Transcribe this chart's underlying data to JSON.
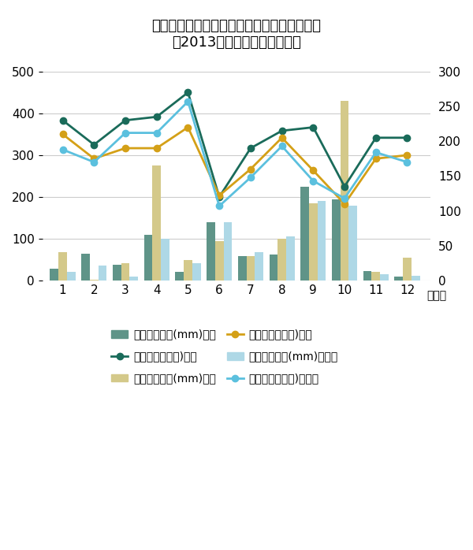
{
  "months": [
    1,
    2,
    3,
    4,
    5,
    6,
    7,
    8,
    9,
    10,
    11,
    12
  ],
  "month_labels": [
    "1",
    "2",
    "3",
    "4",
    "5",
    "6",
    "7",
    "8",
    "9",
    "10",
    "11",
    "12"
  ],
  "precip_oizumi": [
    28,
    65,
    38,
    110,
    20,
    140,
    58,
    62,
    225,
    195,
    22,
    10
  ],
  "precip_tokyo": [
    68,
    2,
    42,
    275,
    50,
    95,
    58,
    100,
    185,
    430,
    20,
    55
  ],
  "precip_karuizawa": [
    20,
    35,
    10,
    100,
    42,
    140,
    68,
    105,
    190,
    180,
    15,
    12
  ],
  "sunshine_oizumi": [
    230,
    195,
    230,
    235,
    270,
    120,
    190,
    215,
    220,
    135,
    205,
    205
  ],
  "sunshine_tokyo": [
    210,
    175,
    190,
    190,
    220,
    122,
    160,
    205,
    158,
    110,
    175,
    180
  ],
  "sunshine_karuizawa": [
    188,
    170,
    212,
    212,
    257,
    107,
    148,
    193,
    143,
    118,
    184,
    170
  ],
  "bar_color_oizumi": "#5f9488",
  "bar_color_tokyo": "#d4c98a",
  "bar_color_karuizawa": "#aed8e6",
  "line_color_oizumi": "#1a6b5a",
  "line_color_tokyo": "#d4a017",
  "line_color_karuizawa": "#5bc0de",
  "title_line1": "北杜市大泉の月別平均降水量と平均日照時間",
  "title_line2": "（2013年データ気象庁調べ）",
  "xlabel": "（月）",
  "ylim_left": [
    0,
    500
  ],
  "ylim_right": [
    0,
    300
  ],
  "yticks_left": [
    0,
    100,
    200,
    300,
    400,
    500
  ],
  "yticks_right": [
    0,
    50,
    100,
    150,
    200,
    250,
    300
  ],
  "legend_bar_oizumi": "降水量の合計(mm)大泉",
  "legend_bar_tokyo": "降水量の合計(mm)東京",
  "legend_bar_karuizawa": "降水量の合計(mm)軽井沢",
  "legend_line_oizumi": "日照時間（時間)大泉",
  "legend_line_tokyo": "日照時間（時間)東京",
  "legend_line_karuizawa": "日照時間（時間)軽井沢",
  "background_color": "#ffffff",
  "grid_color": "#cccccc"
}
